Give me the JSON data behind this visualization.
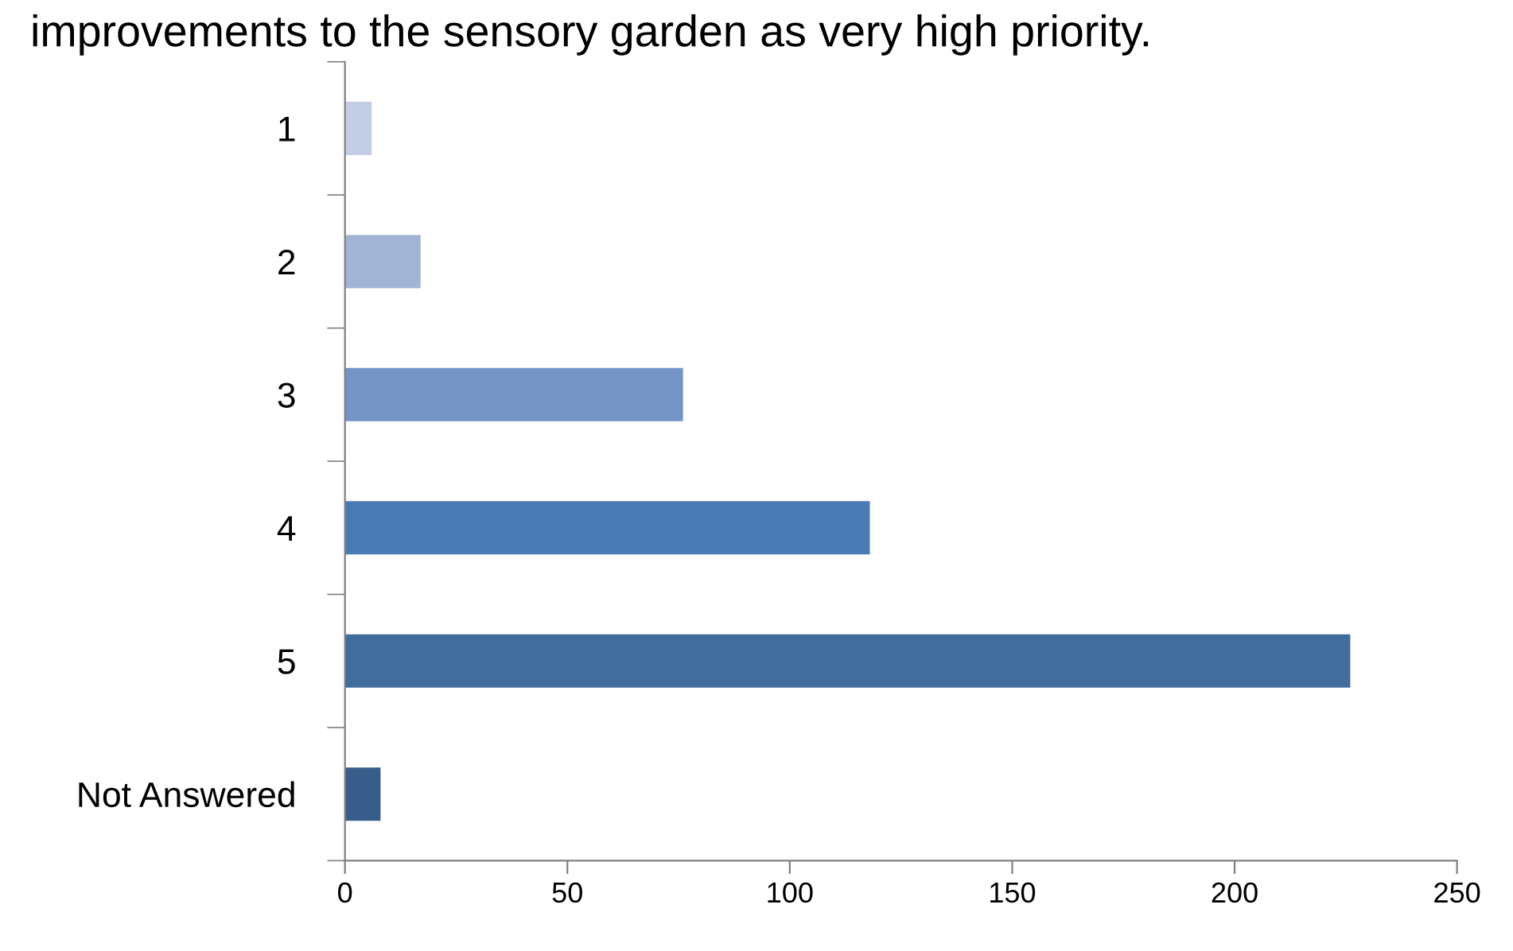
{
  "chart_data": {
    "type": "bar",
    "orientation": "horizontal",
    "title": "improvements to the sensory garden as very high priority.",
    "categories": [
      "1",
      "2",
      "3",
      "4",
      "5",
      "Not Answered"
    ],
    "values": [
      6,
      17,
      76,
      118,
      226,
      8
    ],
    "colors": [
      "#c3cde4",
      "#a1b4d6",
      "#7394c5",
      "#4a7ab4",
      "#416c9e",
      "#385d8a"
    ],
    "xlim": [
      0,
      250
    ],
    "xticks": [
      0,
      50,
      100,
      150,
      200,
      250
    ],
    "grid": false
  }
}
